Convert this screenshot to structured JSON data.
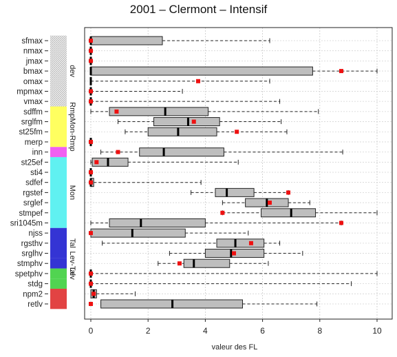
{
  "chart_data": {
    "type": "boxplot",
    "title": "2001 – Clermont – Intensif",
    "xlabel": "valeur des FL",
    "ylabel": "",
    "xlim": [
      -0.2,
      10.2
    ],
    "xticks": [
      0,
      2,
      4,
      6,
      8,
      10
    ],
    "grid": true,
    "box_color": "#bebebe",
    "mean_marker_color": "#ee1111",
    "rows": [
      {
        "name": "sfmax",
        "min": 0,
        "q1": 0,
        "median": 0,
        "q3": 2.5,
        "max": 6.25,
        "mean": 0
      },
      {
        "name": "nmax",
        "min": 0,
        "q1": 0,
        "median": 0,
        "q3": 0,
        "max": 0,
        "mean": 0
      },
      {
        "name": "jmax",
        "min": 0,
        "q1": 0,
        "median": 0,
        "q3": 0,
        "max": 0,
        "mean": 0
      },
      {
        "name": "bmax",
        "min": 0,
        "q1": 0,
        "median": 0,
        "q3": 7.75,
        "max": 10,
        "mean": 8.75
      },
      {
        "name": "omax",
        "min": 0,
        "q1": 0,
        "median": 0,
        "q3": 0,
        "max": 6.25,
        "mean": 3.75
      },
      {
        "name": "mpmax",
        "min": 0,
        "q1": 0,
        "median": 0,
        "q3": 0,
        "max": 3.2,
        "mean": 0
      },
      {
        "name": "vmax",
        "min": 0,
        "q1": 0,
        "median": 0,
        "q3": 0,
        "max": 6.6,
        "mean": 0
      },
      {
        "name": "sdffm",
        "min": 0,
        "q1": 0.65,
        "median": 2.6,
        "q3": 4.1,
        "max": 7.95,
        "mean": 0.9
      },
      {
        "name": "srglfm",
        "min": 0.95,
        "q1": 2.2,
        "median": 3.4,
        "q3": 4.5,
        "max": 6.65,
        "mean": 3.6
      },
      {
        "name": "st25fm",
        "min": 1.2,
        "q1": 2.0,
        "median": 3.05,
        "q3": 4.4,
        "max": 6.85,
        "mean": 5.1
      },
      {
        "name": "merp",
        "min": 0,
        "q1": 0,
        "median": 0,
        "q3": 0,
        "max": 0,
        "mean": 0
      },
      {
        "name": "inn",
        "min": 0.35,
        "q1": 1.7,
        "median": 2.55,
        "q3": 4.65,
        "max": 8.8,
        "mean": 0.95
      },
      {
        "name": "st25ef",
        "min": 0,
        "q1": 0.05,
        "median": 0.6,
        "q3": 1.3,
        "max": 5.15,
        "mean": 0.2
      },
      {
        "name": "sti4",
        "min": 0,
        "q1": 0,
        "median": 0,
        "q3": 0,
        "max": 0,
        "mean": 0
      },
      {
        "name": "sdfef",
        "min": 0,
        "q1": 0,
        "median": 0,
        "q3": 0.1,
        "max": 3.85,
        "mean": 0
      },
      {
        "name": "rgstef",
        "min": 3.5,
        "q1": 4.35,
        "median": 4.75,
        "q3": 5.7,
        "max": 6.9,
        "mean": 6.9
      },
      {
        "name": "srglef",
        "min": 4.6,
        "q1": 5.4,
        "median": 6.15,
        "q3": 6.9,
        "max": 7.65,
        "mean": 6.25
      },
      {
        "name": "stmpef",
        "min": 4.6,
        "q1": 5.95,
        "median": 7.0,
        "q3": 7.85,
        "max": 10,
        "mean": 4.6
      },
      {
        "name": "sri1045m",
        "min": 0,
        "q1": 0.65,
        "median": 1.75,
        "q3": 4.0,
        "max": 8.75,
        "mean": 8.75
      },
      {
        "name": "njss",
        "min": 0,
        "q1": 0,
        "median": 1.45,
        "q3": 3.3,
        "max": 5.5,
        "mean": 0
      },
      {
        "name": "rgsthv",
        "min": 0.4,
        "q1": 4.4,
        "median": 5.05,
        "q3": 6.05,
        "max": 6.6,
        "mean": 5.6
      },
      {
        "name": "srglhv",
        "min": 2.75,
        "q1": 4.0,
        "median": 4.9,
        "q3": 6.05,
        "max": 7.4,
        "mean": 5.0
      },
      {
        "name": "stmphv",
        "min": 2.35,
        "q1": 3.25,
        "median": 3.6,
        "q3": 4.85,
        "max": 6.2,
        "mean": 3.1
      },
      {
        "name": "spetphv",
        "min": 0,
        "q1": 0,
        "median": 0,
        "q3": 0,
        "max": 10,
        "mean": 0
      },
      {
        "name": "stdg",
        "min": 0,
        "q1": 0,
        "median": 0,
        "q3": 0,
        "max": 9.1,
        "mean": 0
      },
      {
        "name": "npm2",
        "min": 0,
        "q1": 0,
        "median": 0.1,
        "q3": 0.2,
        "max": 1.55,
        "mean": 0.1
      },
      {
        "name": "retlv",
        "min": 0.35,
        "q1": 0.35,
        "median": 2.85,
        "q3": 5.3,
        "max": 7.9,
        "mean": 0
      }
    ],
    "groups": [
      {
        "label": "dev",
        "from": 0,
        "to": 6,
        "color": "#aaaaaa"
      },
      {
        "label": "RmpMon-Rmp",
        "from": 7,
        "to": 10,
        "color": "#ffff44"
      },
      {
        "label": "",
        "from": 11,
        "to": 11,
        "color": "#ee44ee"
      },
      {
        "label": "Mon",
        "from": 12,
        "to": 18,
        "color": "#44eeee"
      },
      {
        "label": "Tal",
        "from": 19,
        "to": 21,
        "color": "#1111cc"
      },
      {
        "label": "Lev-Tal",
        "from": 22,
        "to": 22,
        "color": "#1111cc"
      },
      {
        "label": "Lev",
        "from": 23,
        "to": 23,
        "color": "#33cc33"
      },
      {
        "label": "",
        "from": 24,
        "to": 24,
        "color": "#33cc33"
      },
      {
        "label": "",
        "from": 25,
        "to": 26,
        "color": "#dd2222"
      }
    ]
  }
}
